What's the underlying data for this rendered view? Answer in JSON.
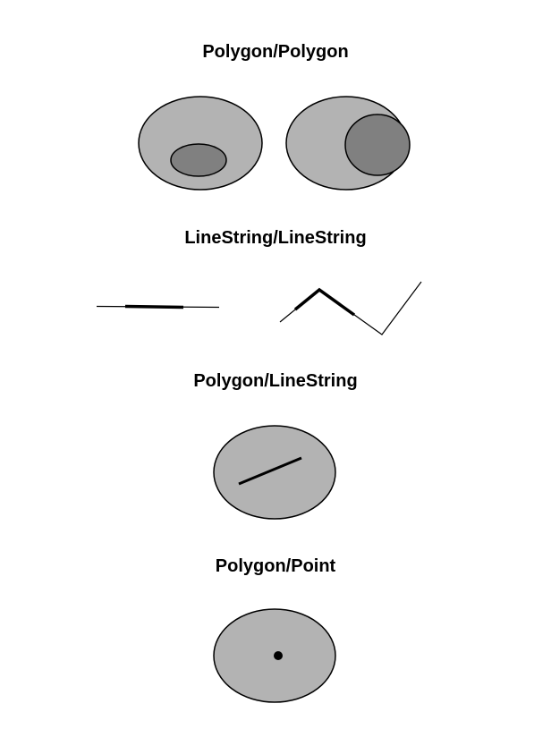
{
  "headings": {
    "polygon_polygon": "Polygon/Polygon",
    "linestring_linestring": "LineString/LineString",
    "polygon_linestring": "Polygon/LineString",
    "polygon_point": "Polygon/Point"
  },
  "colors": {
    "polygon_fill": "#b3b3b3",
    "inner_polygon_fill": "#808080",
    "stroke": "#000000",
    "background": "#ffffff"
  }
}
